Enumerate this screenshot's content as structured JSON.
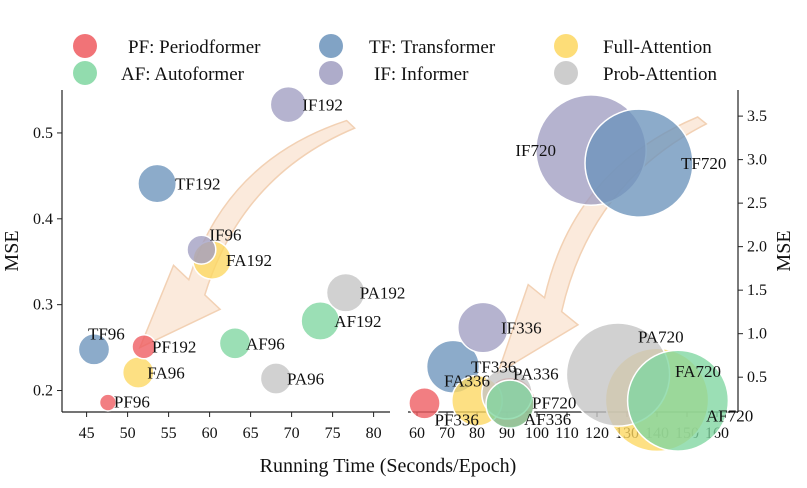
{
  "figure": {
    "xlabel": "Running Time (Seconds/Epoch)"
  },
  "colors": {
    "PF": "#ee5a5f",
    "TF": "#6b93bb",
    "FA": "#fdd760",
    "AF": "#7fd6a0",
    "IF": "#a09dc1",
    "PA": "#c4c4c4",
    "arrow_fill": "#fbe7d6",
    "arrow_edge": "#f0c9a8"
  },
  "legend": [
    {
      "key": "PF",
      "label": "PF: Periodformer"
    },
    {
      "key": "TF",
      "label": "TF: Transformer"
    },
    {
      "key": "FA",
      "label": "Full-Attention"
    },
    {
      "key": "AF",
      "label": "AF: Autoformer"
    },
    {
      "key": "IF",
      "label": "IF: Informer"
    },
    {
      "key": "PA",
      "label": "Prob-Attention"
    }
  ],
  "chart_data": [
    {
      "type": "scatter",
      "title": "",
      "xlabel": "Running Time (Seconds/Epoch)",
      "ylabel": "MSE",
      "xlim": [
        42,
        82
      ],
      "ylim": [
        0.175,
        0.55
      ],
      "xticks": [
        45,
        50,
        55,
        60,
        65,
        70,
        75,
        80
      ],
      "yticks": [
        0.2,
        0.3,
        0.4,
        0.5
      ],
      "ytick_labels": [
        "0.2",
        "0.3",
        "0.4",
        "0.5"
      ],
      "points": [
        {
          "label": "PF96",
          "series": "PF",
          "x": 47.6,
          "y": 0.186,
          "size": 0.7
        },
        {
          "label": "PF192",
          "series": "PF",
          "x": 52.0,
          "y": 0.251,
          "size": 1.0
        },
        {
          "label": "TF96",
          "series": "TF",
          "x": 45.9,
          "y": 0.248,
          "size": 1.3
        },
        {
          "label": "TF192",
          "series": "TF",
          "x": 53.6,
          "y": 0.441,
          "size": 1.6
        },
        {
          "label": "FA96",
          "series": "FA",
          "x": 51.3,
          "y": 0.221,
          "size": 1.3
        },
        {
          "label": "FA192",
          "series": "FA",
          "x": 60.3,
          "y": 0.352,
          "size": 1.6
        },
        {
          "label": "AF96",
          "series": "AF",
          "x": 63.1,
          "y": 0.255,
          "size": 1.3
        },
        {
          "label": "AF192",
          "series": "AF",
          "x": 73.5,
          "y": 0.281,
          "size": 1.6
        },
        {
          "label": "IF96",
          "series": "IF",
          "x": 59.0,
          "y": 0.364,
          "size": 1.2
        },
        {
          "label": "IF192",
          "series": "IF",
          "x": 69.6,
          "y": 0.533,
          "size": 1.5
        },
        {
          "label": "PA96",
          "series": "PA",
          "x": 68.1,
          "y": 0.214,
          "size": 1.3
        },
        {
          "label": "PA192",
          "series": "PA",
          "x": 76.6,
          "y": 0.314,
          "size": 1.6
        }
      ],
      "annotations": [
        {
          "type": "arrow",
          "from": [
            77.2,
            0.51
          ],
          "to": [
            51.5,
            0.25
          ],
          "note": "trend toward lower error and faster runtime"
        }
      ]
    },
    {
      "type": "scatter",
      "title": "",
      "xlabel": "Running Time (Seconds/Epoch)",
      "ylabel": "MSE",
      "ylabel_position": "right",
      "xlim": [
        57,
        167
      ],
      "ylim": [
        0.1,
        3.8
      ],
      "xticks": [
        60,
        70,
        80,
        90,
        100,
        110,
        120,
        130,
        140,
        150,
        160
      ],
      "yticks": [
        0.5,
        1.0,
        1.5,
        2.0,
        2.5,
        3.0,
        3.5
      ],
      "ytick_labels": [
        "0.5",
        "1.0",
        "1.5",
        "2.0",
        "2.5",
        "3.0",
        "3.5"
      ],
      "points": [
        {
          "label": "PF336",
          "series": "PF",
          "x": 62.5,
          "y": 0.2,
          "size": 1.3
        },
        {
          "label": "PF720",
          "series": "PF",
          "x": 91.0,
          "y": 0.21,
          "size": 2.1
        },
        {
          "label": "TF336",
          "series": "TF",
          "x": 72.0,
          "y": 0.62,
          "size": 2.2
        },
        {
          "label": "TF720",
          "series": "TF",
          "x": 134.0,
          "y": 2.96,
          "size": 4.5
        },
        {
          "label": "FA336",
          "series": "FA",
          "x": 80.0,
          "y": 0.23,
          "size": 2.1
        },
        {
          "label": "FA720",
          "series": "FA",
          "x": 140.0,
          "y": 0.24,
          "size": 4.3
        },
        {
          "label": "AF336",
          "series": "AF",
          "x": 91.0,
          "y": 0.19,
          "size": 2.0
        },
        {
          "label": "AF720",
          "series": "AF",
          "x": 147.0,
          "y": 0.23,
          "size": 4.2
        },
        {
          "label": "IF336",
          "series": "IF",
          "x": 82.0,
          "y": 1.07,
          "size": 2.1
        },
        {
          "label": "IF720",
          "series": "IF",
          "x": 118.0,
          "y": 3.11,
          "size": 4.6
        },
        {
          "label": "PA336",
          "series": "PA",
          "x": 90.0,
          "y": 0.31,
          "size": 2.1
        },
        {
          "label": "PA720",
          "series": "PA",
          "x": 127.0,
          "y": 0.53,
          "size": 4.3
        }
      ],
      "annotations": [
        {
          "type": "arrow",
          "from": [
            155.0,
            3.45
          ],
          "to": [
            87.0,
            0.55
          ],
          "note": "trend toward lower error and faster runtime"
        }
      ]
    }
  ]
}
